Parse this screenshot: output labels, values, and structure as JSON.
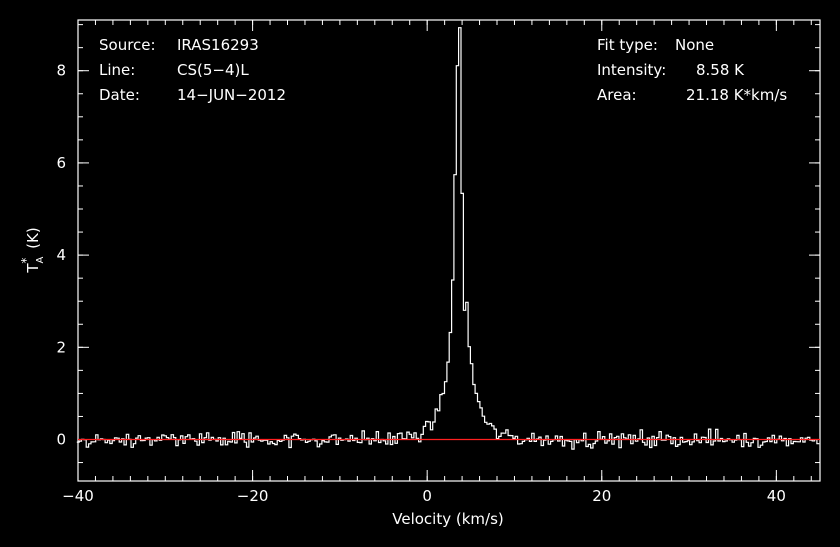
{
  "annotations": {
    "left": [
      {
        "label": "Source:",
        "value": "IRAS16293"
      },
      {
        "label": "Line:",
        "value": "CS(5−4)L"
      },
      {
        "label": "Date:",
        "value": "14−JUN−2012"
      }
    ],
    "right": [
      {
        "label": "Fit type:",
        "value": "None"
      },
      {
        "label": "Intensity:",
        "value": "8.58 K"
      },
      {
        "label": "Area:",
        "value": "21.18 K*km/s"
      }
    ]
  },
  "chart_data": {
    "type": "line",
    "title": "",
    "xlabel": "Velocity (km/s)",
    "ylabel": "T*A (K)",
    "xlim": [
      -40,
      45
    ],
    "ylim": [
      -0.9,
      9.1
    ],
    "xticks": [
      -40,
      -20,
      0,
      20,
      40
    ],
    "xtick_labels": [
      "−40",
      "−20",
      "0",
      "20",
      "40"
    ],
    "yticks": [
      0,
      2,
      4,
      6,
      8
    ],
    "yticks_minor_step": 0.5,
    "xticks_minor_step": 2,
    "grid": false,
    "style": "steps",
    "colors": {
      "spectrum": "#ffffff",
      "baseline": "#ff2020",
      "axes": "#ffffff"
    },
    "baseline": 0,
    "peak_velocity": 3.7,
    "peak_intensity": 8.58,
    "rms_noise": 0.12,
    "channel_width": 0.27
  }
}
